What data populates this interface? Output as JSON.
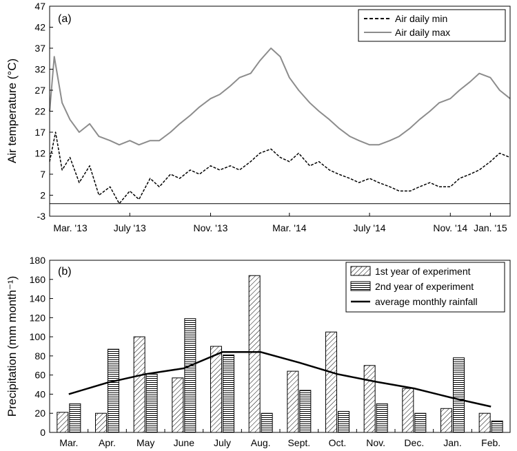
{
  "chart_data": [
    {
      "type": "line",
      "panel_label": "(a)",
      "ylabel": "Air temperature (°C)",
      "ylim": [
        -3,
        47
      ],
      "yticks": [
        -3,
        2,
        7,
        12,
        17,
        22,
        27,
        32,
        37,
        42,
        47
      ],
      "xlim": [
        "2013-03-01",
        "2015-01-31"
      ],
      "xticks": [
        {
          "label": "Mar. '13",
          "date": "2013-03-01"
        },
        {
          "label": "July '13",
          "date": "2013-07-01"
        },
        {
          "label": "Nov. '13",
          "date": "2013-11-01"
        },
        {
          "label": "Mar. '14",
          "date": "2014-03-01"
        },
        {
          "label": "July '14",
          "date": "2014-07-01"
        },
        {
          "label": "Nov. '14",
          "date": "2014-11-01"
        },
        {
          "label": "Jan. '15",
          "date": "2015-01-01"
        }
      ],
      "legend_position": "top-right",
      "reference_line_y": 0,
      "series": [
        {
          "name": "Air daily min",
          "color": "#000000",
          "dash": "dashed",
          "points": [
            [
              "2013-03-01",
              10
            ],
            [
              "2013-03-10",
              17
            ],
            [
              "2013-03-20",
              8
            ],
            [
              "2013-04-01",
              11
            ],
            [
              "2013-04-15",
              5
            ],
            [
              "2013-05-01",
              9
            ],
            [
              "2013-05-15",
              2
            ],
            [
              "2013-06-01",
              4
            ],
            [
              "2013-06-15",
              0
            ],
            [
              "2013-07-01",
              3
            ],
            [
              "2013-07-15",
              1
            ],
            [
              "2013-08-01",
              6
            ],
            [
              "2013-08-15",
              4
            ],
            [
              "2013-09-01",
              7
            ],
            [
              "2013-09-15",
              6
            ],
            [
              "2013-10-01",
              8
            ],
            [
              "2013-10-15",
              7
            ],
            [
              "2013-11-01",
              9
            ],
            [
              "2013-11-15",
              8
            ],
            [
              "2013-12-01",
              9
            ],
            [
              "2013-12-15",
              8
            ],
            [
              "2014-01-01",
              10
            ],
            [
              "2014-01-15",
              12
            ],
            [
              "2014-02-01",
              13
            ],
            [
              "2014-02-15",
              11
            ],
            [
              "2014-03-01",
              10
            ],
            [
              "2014-03-15",
              12
            ],
            [
              "2014-04-01",
              9
            ],
            [
              "2014-04-15",
              10
            ],
            [
              "2014-05-01",
              8
            ],
            [
              "2014-05-15",
              7
            ],
            [
              "2014-06-01",
              6
            ],
            [
              "2014-06-15",
              5
            ],
            [
              "2014-07-01",
              6
            ],
            [
              "2014-07-15",
              5
            ],
            [
              "2014-08-01",
              4
            ],
            [
              "2014-08-15",
              3
            ],
            [
              "2014-09-01",
              3
            ],
            [
              "2014-09-15",
              4
            ],
            [
              "2014-10-01",
              5
            ],
            [
              "2014-10-15",
              4
            ],
            [
              "2014-11-01",
              4
            ],
            [
              "2014-11-15",
              6
            ],
            [
              "2014-12-01",
              7
            ],
            [
              "2014-12-15",
              8
            ],
            [
              "2015-01-01",
              10
            ],
            [
              "2015-01-15",
              12
            ],
            [
              "2015-01-31",
              11
            ]
          ]
        },
        {
          "name": "Air daily max",
          "color": "#8c8c8c",
          "dash": "solid",
          "points": [
            [
              "2013-03-01",
              22
            ],
            [
              "2013-03-08",
              35
            ],
            [
              "2013-03-20",
              24
            ],
            [
              "2013-04-01",
              20
            ],
            [
              "2013-04-15",
              17
            ],
            [
              "2013-05-01",
              19
            ],
            [
              "2013-05-15",
              16
            ],
            [
              "2013-06-01",
              15
            ],
            [
              "2013-06-15",
              14
            ],
            [
              "2013-07-01",
              15
            ],
            [
              "2013-07-15",
              14
            ],
            [
              "2013-08-01",
              15
            ],
            [
              "2013-08-15",
              15
            ],
            [
              "2013-09-01",
              17
            ],
            [
              "2013-09-15",
              19
            ],
            [
              "2013-10-01",
              21
            ],
            [
              "2013-10-15",
              23
            ],
            [
              "2013-11-01",
              25
            ],
            [
              "2013-11-15",
              26
            ],
            [
              "2013-12-01",
              28
            ],
            [
              "2013-12-15",
              30
            ],
            [
              "2014-01-01",
              31
            ],
            [
              "2014-01-15",
              34
            ],
            [
              "2014-02-01",
              37
            ],
            [
              "2014-02-15",
              35
            ],
            [
              "2014-03-01",
              30
            ],
            [
              "2014-03-15",
              27
            ],
            [
              "2014-04-01",
              24
            ],
            [
              "2014-04-15",
              22
            ],
            [
              "2014-05-01",
              20
            ],
            [
              "2014-05-15",
              18
            ],
            [
              "2014-06-01",
              16
            ],
            [
              "2014-06-15",
              15
            ],
            [
              "2014-07-01",
              14
            ],
            [
              "2014-07-15",
              14
            ],
            [
              "2014-08-01",
              15
            ],
            [
              "2014-08-15",
              16
            ],
            [
              "2014-09-01",
              18
            ],
            [
              "2014-09-15",
              20
            ],
            [
              "2014-10-01",
              22
            ],
            [
              "2014-10-15",
              24
            ],
            [
              "2014-11-01",
              25
            ],
            [
              "2014-11-15",
              27
            ],
            [
              "2014-12-01",
              29
            ],
            [
              "2014-12-15",
              31
            ],
            [
              "2015-01-01",
              30
            ],
            [
              "2015-01-15",
              27
            ],
            [
              "2015-01-31",
              25
            ]
          ]
        }
      ]
    },
    {
      "type": "bar",
      "panel_label": "(b)",
      "ylabel": "Precipitation (mm month⁻¹)",
      "ylim": [
        0,
        180
      ],
      "yticks": [
        0,
        20,
        40,
        60,
        80,
        100,
        120,
        140,
        160,
        180
      ],
      "categories": [
        "Mar.",
        "Apr.",
        "May",
        "June",
        "July",
        "Aug.",
        "Sept.",
        "Oct.",
        "Nov.",
        "Dec.",
        "Jan.",
        "Feb."
      ],
      "legend_position": "top-right",
      "series": [
        {
          "name": "1st year of experiment",
          "style": "diagonal-hatch",
          "values": [
            21,
            20,
            100,
            57,
            90,
            164,
            64,
            105,
            70,
            46,
            25,
            20
          ]
        },
        {
          "name": "2nd year of experiment",
          "style": "horizontal-hatch",
          "values": [
            30,
            87,
            61,
            119,
            81,
            20,
            44,
            22,
            30,
            20,
            78,
            12
          ]
        },
        {
          "name": "average monthly rainfall",
          "style": "line",
          "values": [
            40,
            52,
            61,
            67,
            84,
            84,
            73,
            61,
            53,
            46,
            36,
            27
          ]
        }
      ]
    }
  ]
}
